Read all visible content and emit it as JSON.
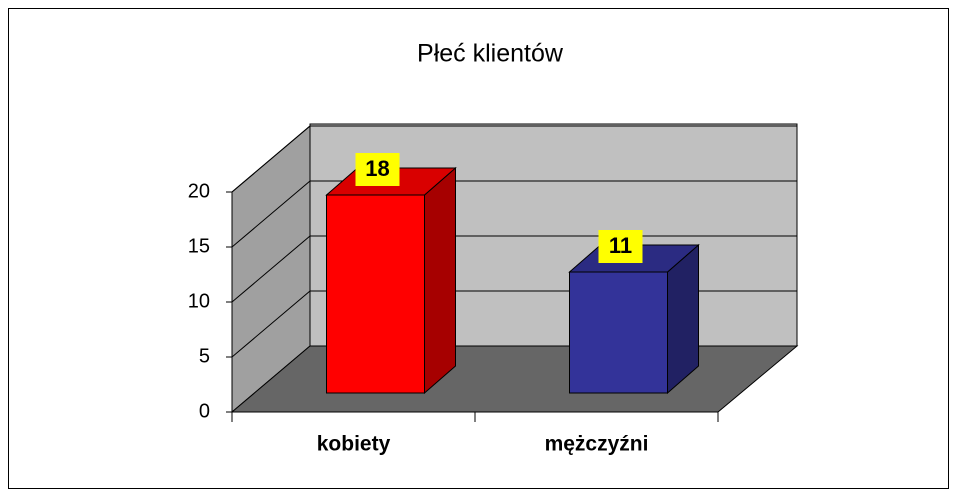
{
  "chart_data": {
    "type": "bar",
    "title": "Płeć klientów",
    "categories": [
      "kobiety",
      "mężczyźni"
    ],
    "values": [
      18,
      11
    ],
    "colors": [
      "#ff0000",
      "#333399"
    ],
    "ylim": [
      0,
      20
    ],
    "yticks": [
      0,
      5,
      10,
      15,
      20
    ],
    "grid": true
  }
}
